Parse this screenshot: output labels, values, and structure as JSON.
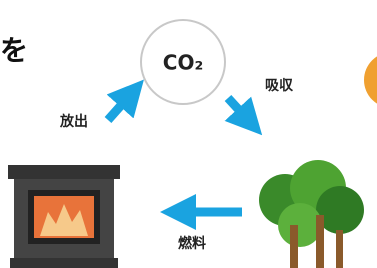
{
  "header": {
    "partial_text": "を"
  },
  "nodes": [
    {
      "label": "CO₂"
    }
  ],
  "edges": [
    {
      "label": "放出"
    },
    {
      "label": "吸収"
    },
    {
      "label": "燃料"
    }
  ]
}
